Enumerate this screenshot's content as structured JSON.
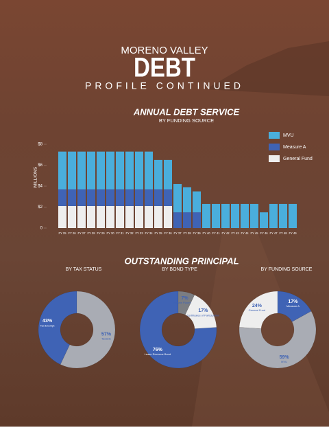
{
  "header": {
    "city": "MORENO VALLEY",
    "title": "DEBT",
    "subtitle": "PROFILE CONTINUED"
  },
  "section_title": "OUTSTANDING PRINCIPAL",
  "chart_data": [
    {
      "type": "bar",
      "stacked": true,
      "title": "ANNUAL DEBT SERVICE",
      "subtitle": "BY FUNDING SOURCE",
      "y_label": "MILLIONS",
      "categories": [
        "FY 25",
        "FY 26",
        "FY 27",
        "FY 28",
        "FY 29",
        "FY 30",
        "FY 31",
        "FY 32",
        "FY 33",
        "FY 34",
        "FY 35",
        "FY 36",
        "FY 37",
        "FY 38",
        "FY 39",
        "FY 40",
        "FY 41",
        "FY 42",
        "FY 43",
        "FY 44",
        "FY 45",
        "FY 46",
        "FY 47",
        "FY 48",
        "FY 49"
      ],
      "series": [
        {
          "name": "MVU",
          "color": "#4aaedc",
          "values": [
            3.6,
            3.6,
            3.6,
            3.6,
            3.6,
            3.6,
            3.6,
            3.6,
            3.6,
            3.6,
            2.8,
            2.8,
            2.7,
            2.4,
            2.0,
            2.3,
            2.3,
            2.3,
            2.3,
            2.3,
            2.3,
            1.5,
            2.3,
            2.3,
            2.3
          ]
        },
        {
          "name": "Measure A",
          "color": "#3f63b5",
          "values": [
            1.6,
            1.6,
            1.6,
            1.6,
            1.6,
            1.6,
            1.6,
            1.6,
            1.6,
            1.6,
            1.6,
            1.6,
            1.5,
            1.5,
            1.5,
            0,
            0,
            0,
            0,
            0,
            0,
            0,
            0,
            0,
            0
          ]
        },
        {
          "name": "General Fund",
          "color": "#eeeeee",
          "values": [
            2.1,
            2.1,
            2.1,
            2.1,
            2.1,
            2.1,
            2.1,
            2.1,
            2.1,
            2.1,
            2.1,
            2.1,
            0,
            0,
            0,
            0,
            0,
            0,
            0,
            0,
            0,
            0,
            0,
            0,
            0
          ]
        }
      ],
      "ylim": [
        0,
        8
      ],
      "yticks": [
        0,
        {
          "value": 2,
          "label": "$2"
        },
        {
          "value": 4,
          "label": "$4"
        },
        {
          "value": 6,
          "label": "$6"
        },
        {
          "value": 8,
          "label": "$8"
        }
      ]
    },
    {
      "type": "pie",
      "title": "BY TAX STATUS",
      "categories": [
        "Tax Exempt",
        "Taxable"
      ],
      "values": [
        43,
        57
      ],
      "value_labels": [
        "43%",
        "57%"
      ],
      "colors": [
        "#3f63b5",
        "#a9acb4"
      ]
    },
    {
      "type": "pie",
      "title": "BY BOND TYPE",
      "categories": [
        "Lease Revenue Bond",
        "Private Placement",
        "Certificates of Participation"
      ],
      "values": [
        76,
        7,
        17
      ],
      "value_labels": [
        "76%",
        "7%",
        "17%"
      ],
      "colors": [
        "#3f63b5",
        "#7b7d82",
        "#eeeeee"
      ]
    },
    {
      "type": "pie",
      "title": "BY FUNDING SOURCE",
      "categories": [
        "General Fund",
        "Measure A",
        "MVU"
      ],
      "values": [
        24,
        17,
        59
      ],
      "value_labels": [
        "24%",
        "17%",
        "59%"
      ],
      "colors": [
        "#eeeeee",
        "#3f63b5",
        "#a9acb4"
      ]
    }
  ]
}
